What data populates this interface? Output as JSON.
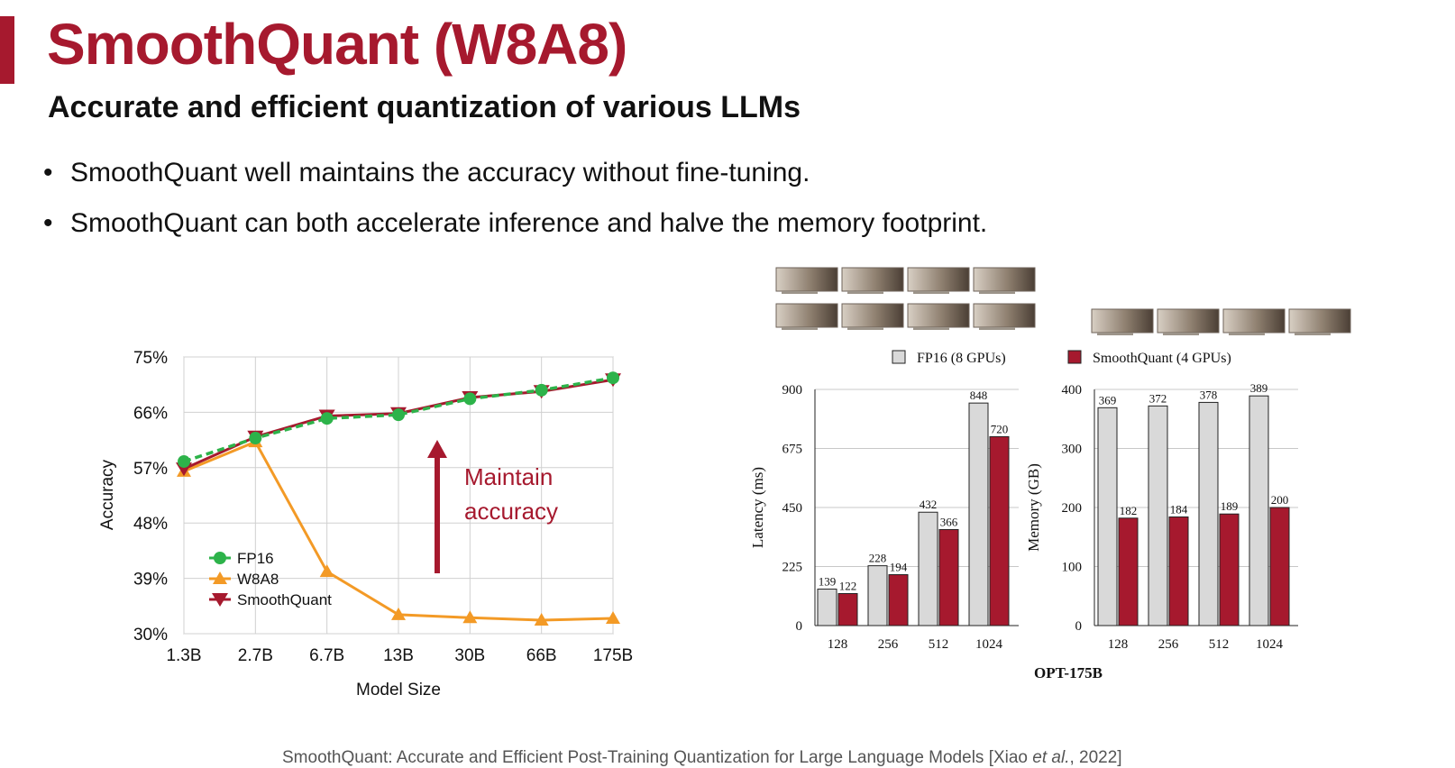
{
  "slide": {
    "title": "SmoothQuant (W8A8)",
    "subtitle": "Accurate and efficient quantization of various LLMs",
    "bullets": [
      "SmoothQuant well maintains the accuracy without fine-tuning.",
      "SmoothQuant can both accelerate inference and halve the memory footprint."
    ],
    "citation_pre": "SmoothQuant: Accurate and Efficient Post-Training Quantization for Large Language Models [Xiao ",
    "citation_em": "et al.",
    "citation_post": ", 2022]"
  },
  "colors": {
    "accent": "#a6192e",
    "fp16": "#2db34a",
    "w8a8": "#f39a26",
    "smoothquant": "#a6192e",
    "fp16_bar": "#d9d9d9"
  },
  "chart_data": [
    {
      "type": "line",
      "xlabel": "Model Size",
      "ylabel": "Accuracy",
      "categories": [
        "1.3B",
        "2.7B",
        "6.7B",
        "13B",
        "30B",
        "66B",
        "175B"
      ],
      "ylim": [
        30,
        75
      ],
      "yticks": [
        "30%",
        "39%",
        "48%",
        "57%",
        "66%",
        "75%"
      ],
      "grid": true,
      "legend_position": "bottom-left",
      "series": [
        {
          "name": "FP16",
          "values": [
            58.0,
            61.8,
            65.0,
            65.6,
            68.2,
            69.6,
            71.6
          ]
        },
        {
          "name": "W8A8",
          "values": [
            56.4,
            61.2,
            40.1,
            33.1,
            32.6,
            32.2,
            32.5
          ]
        },
        {
          "name": "SmoothQuant",
          "values": [
            56.8,
            62.0,
            65.4,
            65.8,
            68.4,
            69.4,
            71.3
          ]
        }
      ],
      "annotation": "Maintain\naccuracy"
    },
    {
      "type": "bar",
      "ylabel": "Latency (ms)",
      "categories": [
        "128",
        "256",
        "512",
        "1024"
      ],
      "ylim": [
        0,
        900
      ],
      "yticks": [
        "0",
        "225",
        "450",
        "675",
        "900"
      ],
      "legend_position": "top",
      "series": [
        {
          "name": "FP16 (8 GPUs)",
          "values": [
            139,
            228,
            432,
            848
          ]
        },
        {
          "name": "SmoothQuant (4 GPUs)",
          "values": [
            122,
            194,
            366,
            720
          ]
        }
      ]
    },
    {
      "type": "bar",
      "ylabel": "Memory (GB)",
      "categories": [
        "128",
        "256",
        "512",
        "1024"
      ],
      "ylim": [
        0,
        400
      ],
      "yticks": [
        "0",
        "100",
        "200",
        "300",
        "400"
      ],
      "series": [
        {
          "name": "FP16 (8 GPUs)",
          "values": [
            369,
            372,
            378,
            389
          ]
        },
        {
          "name": "SmoothQuant (4 GPUs)",
          "values": [
            182,
            184,
            189,
            200
          ]
        }
      ],
      "shared_label": "OPT-175B"
    }
  ]
}
